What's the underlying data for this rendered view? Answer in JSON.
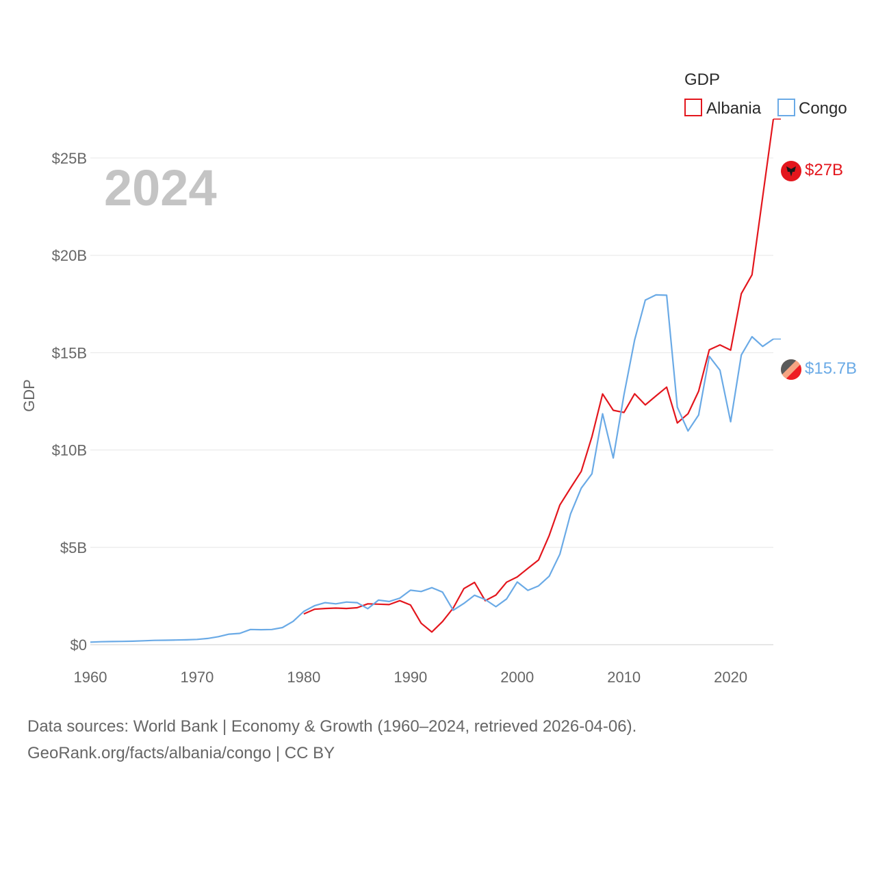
{
  "chart_data": {
    "type": "line",
    "title": "",
    "year_label": "2024",
    "xlabel": "",
    "ylabel": "GDP",
    "xlim": [
      1960,
      2024
    ],
    "ylim": [
      0,
      27
    ],
    "x_ticks": [
      1960,
      1970,
      1980,
      1990,
      2000,
      2010,
      2020
    ],
    "x_tick_labels": [
      "1960",
      "1970",
      "1980",
      "1990",
      "2000",
      "2010",
      "2020"
    ],
    "y_ticks": [
      0,
      5,
      10,
      15,
      20,
      25
    ],
    "y_tick_labels": [
      "$0",
      "$5B",
      "$10B",
      "$15B",
      "$20B",
      "$25B"
    ],
    "grid": true,
    "legend": {
      "title": "GDP",
      "position": "top-right"
    },
    "series": [
      {
        "name": "Albania",
        "color": "#e3161d",
        "end_label": "$27B",
        "start_year": 1980,
        "values": [
          1.58,
          1.82,
          1.86,
          1.88,
          1.86,
          1.9,
          2.1,
          2.08,
          2.06,
          2.26,
          2.04,
          1.1,
          0.65,
          1.19,
          1.88,
          2.88,
          3.2,
          2.26,
          2.55,
          3.21,
          3.48,
          3.92,
          4.35,
          5.61,
          7.18,
          8.05,
          8.9,
          10.68,
          12.88,
          12.04,
          11.93,
          12.89,
          12.32,
          12.78,
          13.23,
          11.39,
          11.86,
          13.02,
          15.15,
          15.4,
          15.13,
          18.03,
          19.0,
          23.0,
          27.0
        ]
      },
      {
        "name": "Congo",
        "color": "#6aaae6",
        "end_label": "$15.7B",
        "start_year": 1960,
        "values": [
          0.13,
          0.15,
          0.16,
          0.17,
          0.18,
          0.2,
          0.22,
          0.23,
          0.24,
          0.25,
          0.27,
          0.32,
          0.41,
          0.54,
          0.58,
          0.78,
          0.77,
          0.78,
          0.88,
          1.2,
          1.71,
          2.0,
          2.16,
          2.1,
          2.19,
          2.16,
          1.85,
          2.29,
          2.22,
          2.39,
          2.8,
          2.73,
          2.93,
          2.7,
          1.77,
          2.12,
          2.54,
          2.32,
          1.95,
          2.35,
          3.22,
          2.79,
          3.02,
          3.52,
          4.65,
          6.72,
          8.04,
          8.78,
          11.86,
          9.59,
          12.83,
          15.65,
          17.7,
          17.97,
          17.95,
          12.2,
          10.98,
          11.8,
          14.81,
          14.1,
          11.45,
          14.88,
          15.82,
          15.32,
          15.7
        ]
      }
    ]
  },
  "footer": {
    "line1": "Data sources: World Bank | Economy & Growth (1960–2024, retrieved 2026-04-06).",
    "line2": "GeoRank.org/facts/albania/congo | CC BY"
  }
}
